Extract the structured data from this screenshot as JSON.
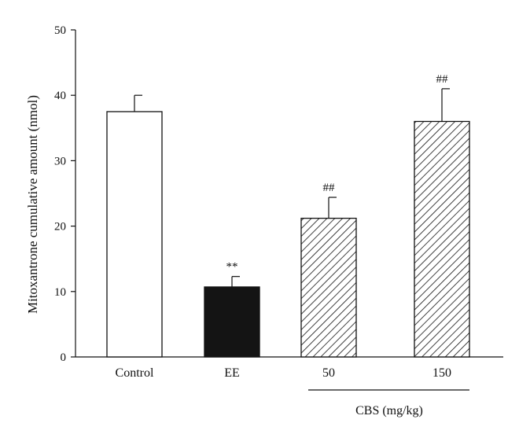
{
  "chart_data": {
    "type": "bar",
    "ylabel": "Mitoxantrone cumulative amount (nmol)",
    "xlabel": "",
    "ylim": [
      0,
      50
    ],
    "yticks": [
      "0",
      "10",
      "20",
      "30",
      "40",
      "50"
    ],
    "grid": false,
    "categories": [
      "Control",
      "EE",
      "50",
      "150"
    ],
    "values": [
      37.5,
      10.7,
      21.2,
      36.0
    ],
    "errors": [
      2.5,
      1.6,
      3.2,
      5.0
    ],
    "annotations": [
      "",
      "**",
      "##",
      "##"
    ],
    "fills": [
      "open",
      "solid",
      "hatched",
      "hatched"
    ],
    "group_label": "CBS (mg/kg)",
    "colors": {
      "solid": "#141414",
      "edge": "#111111",
      "background": "#ffffff"
    }
  }
}
